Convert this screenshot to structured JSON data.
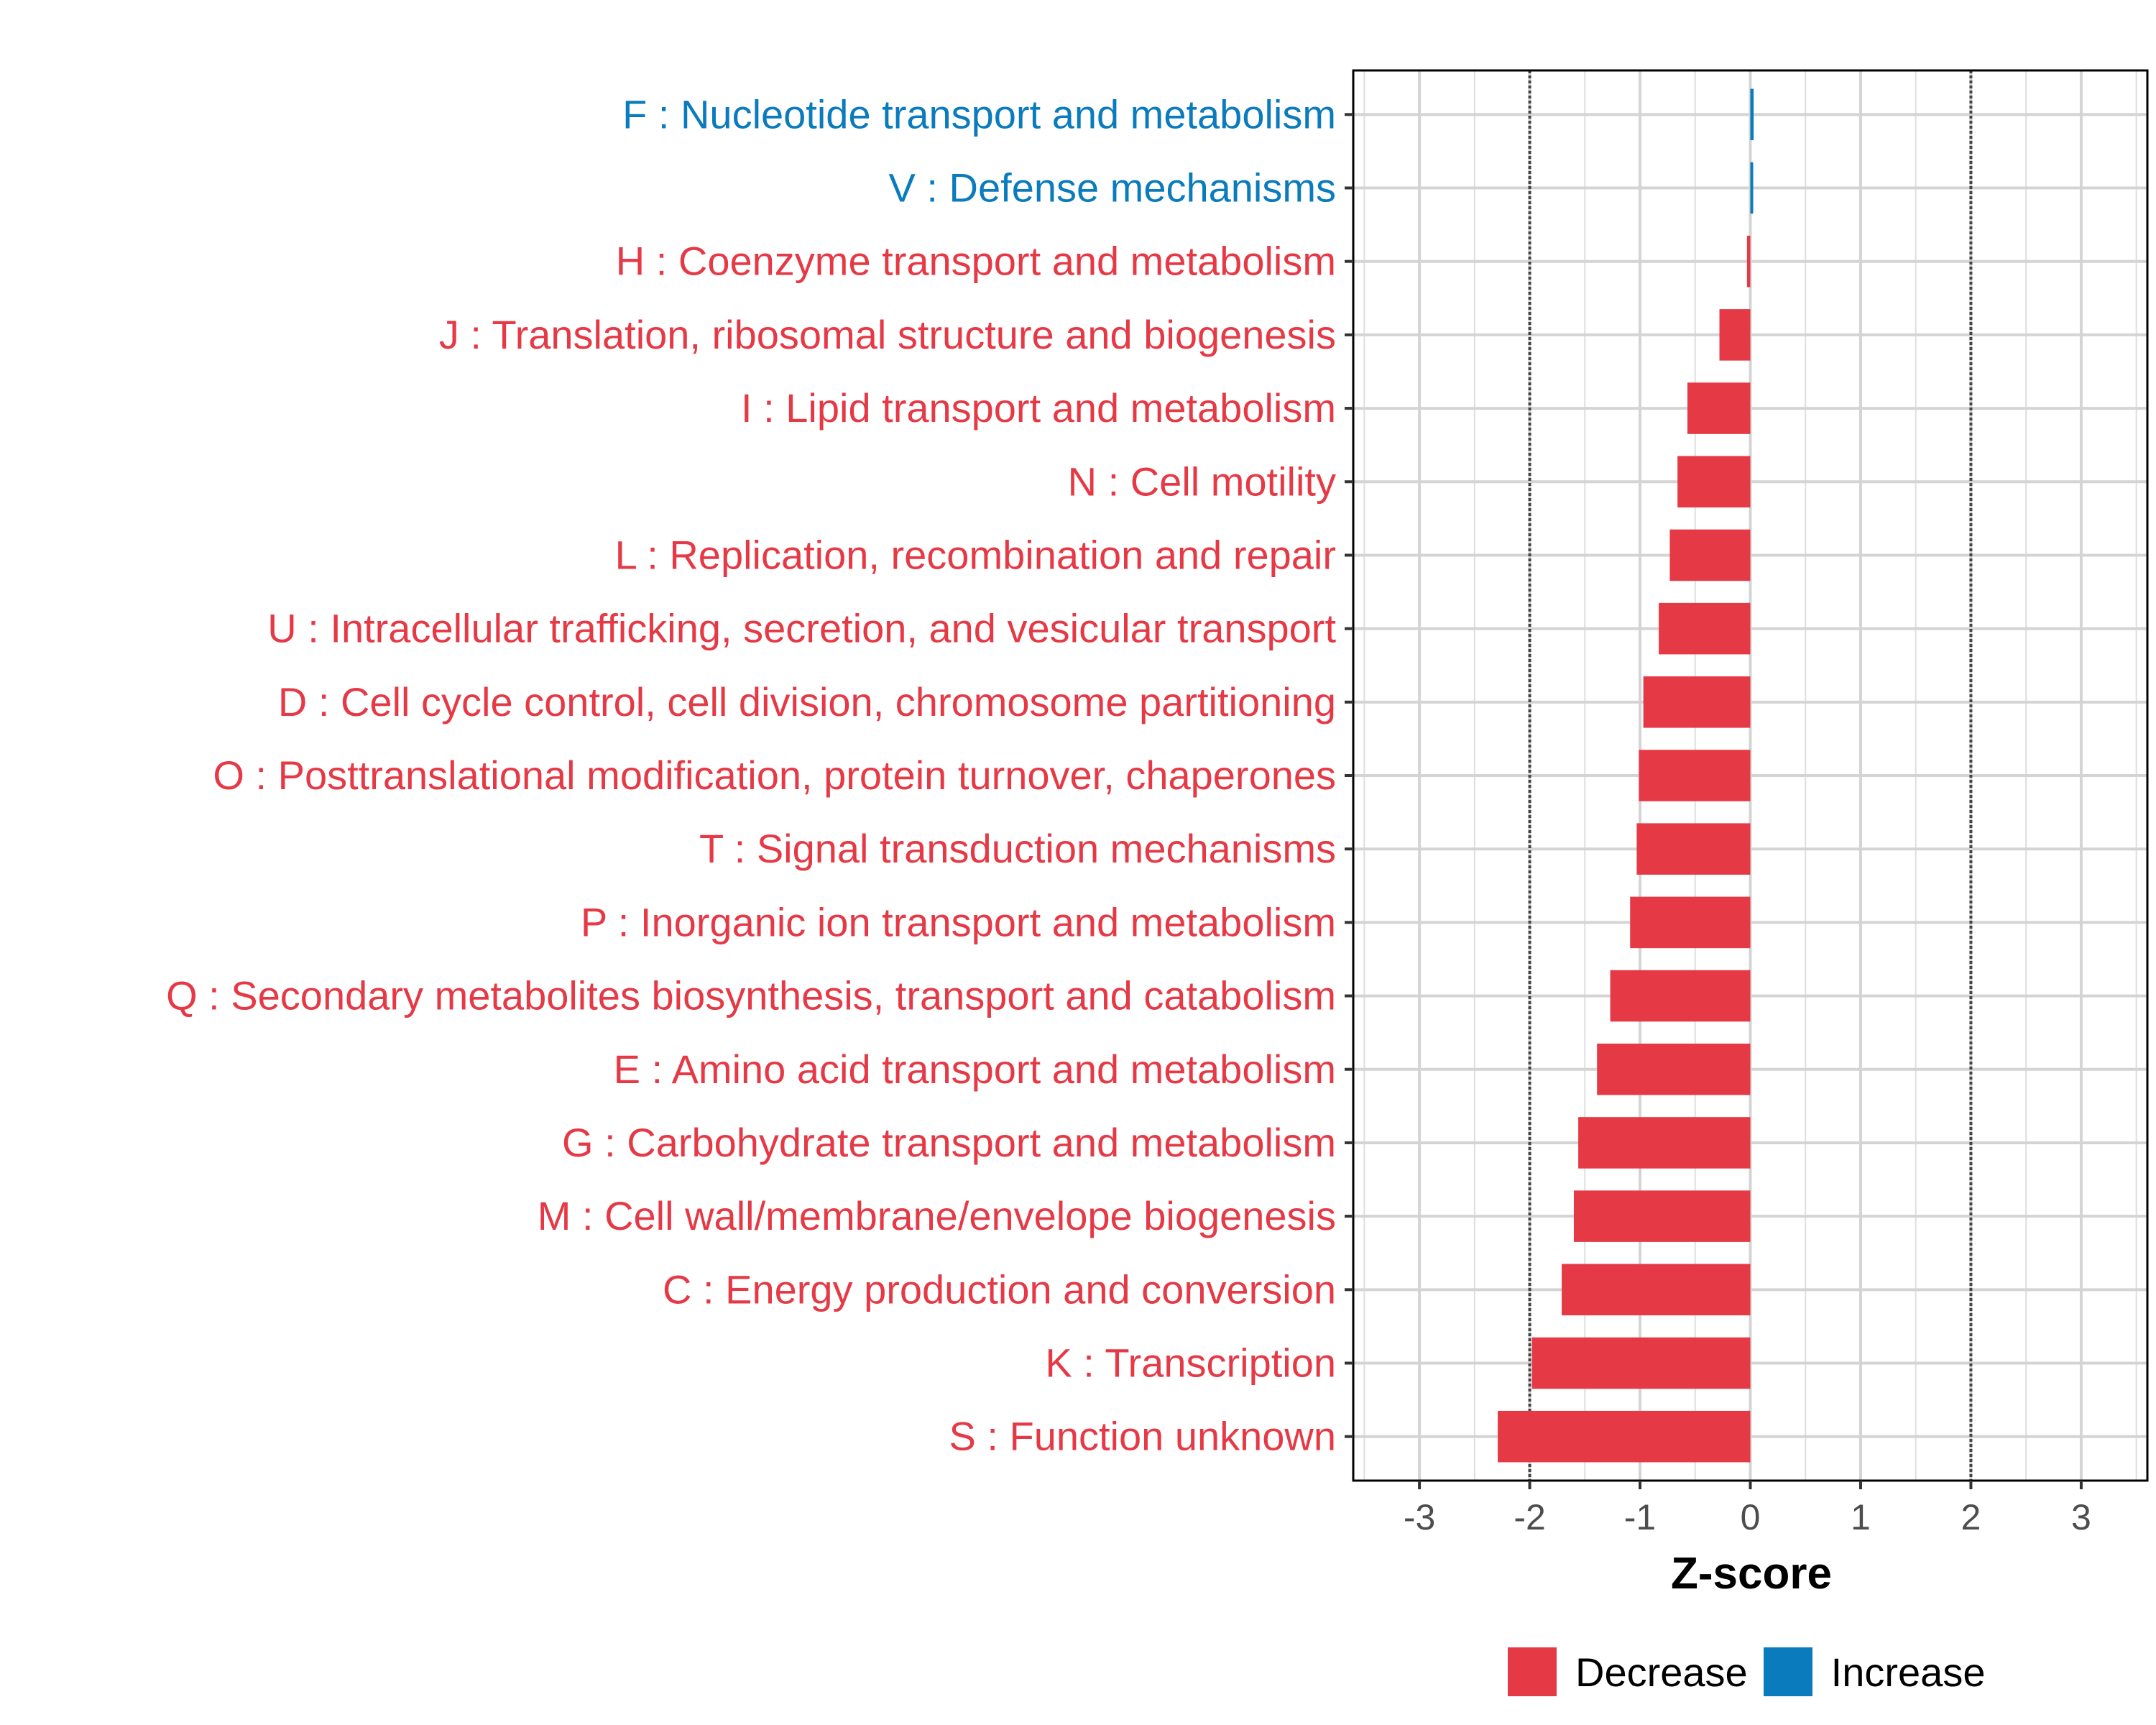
{
  "chart_data": {
    "type": "bar",
    "orientation": "horizontal",
    "xlabel": "Z-score",
    "xlim": [
      -3.6,
      3.6
    ],
    "xticks": [
      -3,
      -2,
      -1,
      0,
      1,
      2,
      3
    ],
    "xtick_labels": [
      "-3",
      "-2",
      "-1",
      "0",
      "1",
      "2",
      "3"
    ],
    "reference_lines": [
      -2,
      2
    ],
    "grid": true,
    "legend_position": "bottom",
    "categories": [
      "F : Nucleotide transport and metabolism",
      "V : Defense mechanisms",
      "H : Coenzyme transport and metabolism",
      "J : Translation, ribosomal structure and biogenesis",
      "I : Lipid transport and metabolism",
      "N : Cell motility",
      "L : Replication, recombination and repair",
      "U : Intracellular trafficking, secretion, and vesicular transport",
      "D : Cell cycle control, cell division, chromosome partitioning",
      "O : Posttranslational modification, protein turnover, chaperones",
      "T : Signal transduction mechanisms",
      "P : Inorganic ion transport and metabolism",
      "Q : Secondary metabolites biosynthesis, transport and catabolism",
      "E : Amino acid transport and metabolism",
      "G : Carbohydrate transport and metabolism",
      "M : Cell wall/membrane/envelope biogenesis",
      "C : Energy production and conversion",
      "K : Transcription",
      "S : Function unknown"
    ],
    "values": [
      0.03,
      0.01,
      -0.03,
      -0.28,
      -0.57,
      -0.66,
      -0.73,
      -0.83,
      -0.97,
      -1.01,
      -1.03,
      -1.09,
      -1.27,
      -1.39,
      -1.56,
      -1.6,
      -1.71,
      -1.98,
      -2.29
    ],
    "groups": [
      "Increase",
      "Increase",
      "Decrease",
      "Decrease",
      "Decrease",
      "Decrease",
      "Decrease",
      "Decrease",
      "Decrease",
      "Decrease",
      "Decrease",
      "Decrease",
      "Decrease",
      "Decrease",
      "Decrease",
      "Decrease",
      "Decrease",
      "Decrease",
      "Decrease"
    ],
    "legend": [
      {
        "name": "Decrease",
        "color": "#e63946"
      },
      {
        "name": "Increase",
        "color": "#0a7bbd"
      }
    ]
  }
}
